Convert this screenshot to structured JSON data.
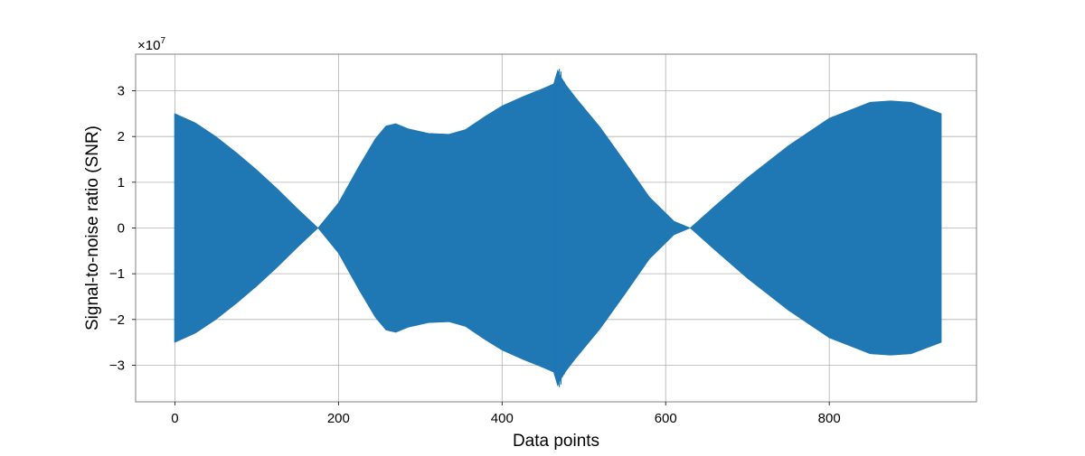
{
  "chart_data": {
    "type": "area",
    "title": "",
    "xlabel": "Data points",
    "ylabel": "Signal-to-noise ratio (SNR)",
    "y_multiplier_base": "×10",
    "y_multiplier_exp": "7",
    "xlim": [
      -48,
      980
    ],
    "ylim": [
      -38000000,
      38000000
    ],
    "x_ticks": [
      0,
      200,
      400,
      600,
      800
    ],
    "x_tick_labels": [
      "0",
      "200",
      "400",
      "600",
      "800"
    ],
    "y_ticks": [
      -30000000,
      -20000000,
      -10000000,
      0,
      10000000,
      20000000,
      30000000
    ],
    "y_tick_labels": [
      "−3",
      "−2",
      "−1",
      "0",
      "1",
      "2",
      "3"
    ],
    "grid": true,
    "series": [
      {
        "color": "#1f77b4",
        "fill": "symmetric-envelope",
        "envelope_x": [
          0,
          25,
          50,
          75,
          100,
          125,
          150,
          175,
          200,
          225,
          245,
          258,
          270,
          285,
          310,
          335,
          355,
          380,
          400,
          425,
          450,
          463,
          468,
          472,
          478,
          490,
          520,
          550,
          580,
          610,
          630,
          660,
          700,
          750,
          800,
          850,
          875,
          900,
          937
        ],
        "envelope_y": [
          25000000,
          23000000,
          20000000,
          16500000,
          12700000,
          8600000,
          4200000,
          0,
          5500000,
          13500000,
          19500000,
          22300000,
          22800000,
          21700000,
          20700000,
          20500000,
          21500000,
          24500000,
          26700000,
          28700000,
          30500000,
          31500000,
          34500000,
          33000000,
          31300000,
          28500000,
          22000000,
          14500000,
          6800000,
          1500000,
          0,
          4800000,
          11000000,
          18000000,
          24000000,
          27500000,
          27800000,
          27500000,
          25000000
        ],
        "spike_x": [
          466,
          468,
          469,
          470,
          471,
          472,
          474,
          476
        ],
        "spike_y": [
          32500000,
          34000000,
          32000000,
          34800000,
          33200000,
          34200000,
          32500000,
          32000000
        ]
      }
    ]
  }
}
